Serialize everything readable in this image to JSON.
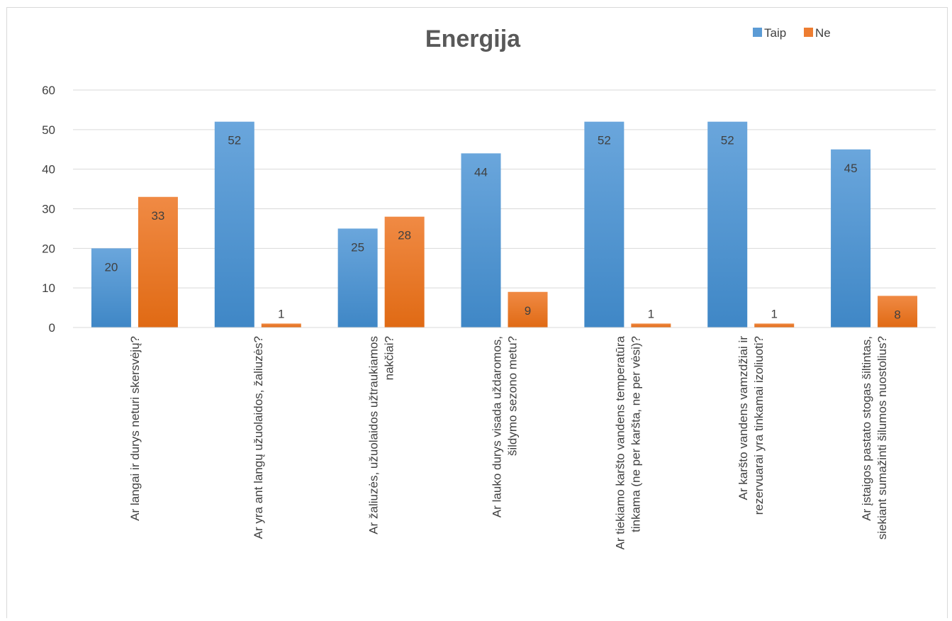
{
  "chart_data": {
    "type": "bar",
    "title": "Energija",
    "xlabel": "",
    "ylabel": "",
    "ylim": [
      0,
      60
    ],
    "yticks": [
      0,
      10,
      20,
      30,
      40,
      50,
      60
    ],
    "grid": true,
    "legend_position": "top-right",
    "categories": [
      [
        "Ar langai ir durys neturi skersvėjų?"
      ],
      [
        "Ar yra ant langų užuolaidos, žaliuzės?"
      ],
      [
        "Ar žaliuzės, užuolaidos užtraukiamos",
        "nakčiai?"
      ],
      [
        "Ar lauko durys visada uždaromos,",
        "šildymo sezono metu?"
      ],
      [
        "Ar tiekiamo karšto vandens temperatūra",
        "tinkama (ne per karšta, ne per vėsi)?"
      ],
      [
        "Ar karšto vandens vamzdžiai ir",
        "rezervuarai yra tinkamai izoliuoti?"
      ],
      [
        "Ar įstaigos pastato stogas šiltintas,",
        "siekiant sumažinti šilumos nuostolius?"
      ]
    ],
    "series": [
      {
        "name": "Taip",
        "color": "#5b9bd5",
        "values": [
          20,
          52,
          25,
          44,
          52,
          52,
          45
        ]
      },
      {
        "name": "Ne",
        "color": "#ed7d31",
        "values": [
          33,
          1,
          28,
          9,
          1,
          1,
          8
        ]
      }
    ]
  }
}
